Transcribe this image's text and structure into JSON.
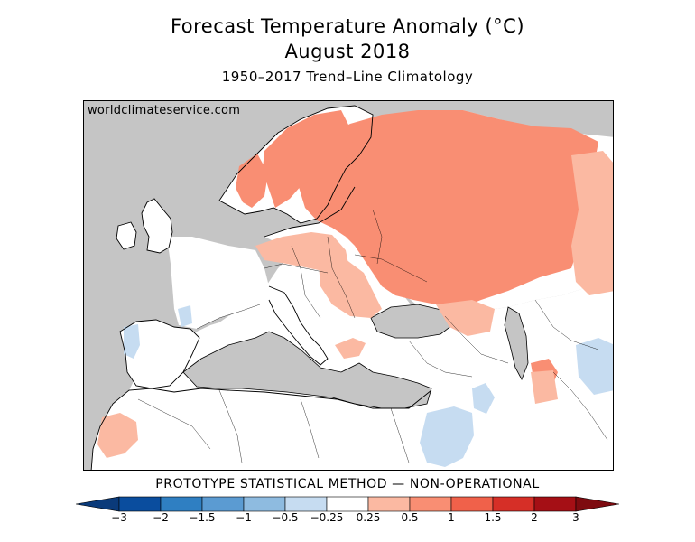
{
  "title": {
    "line1": "Forecast Temperature Anomaly (°C)",
    "line2": "August 2018",
    "line3": "1950–2017 Trend–Line Climatology"
  },
  "watermark": "worldclimateservice.com",
  "method_label": "PROTOTYPE STATISTICAL METHOD — NON-OPERATIONAL",
  "legend": {
    "ticks": [
      "−3",
      "−2",
      "−1.5",
      "−1",
      "−0.5",
      "−0.25",
      "0.25",
      "0.5",
      "1",
      "1.5",
      "2",
      "3"
    ],
    "colors": [
      "#0a4d9e",
      "#2f7fc2",
      "#5b9bd2",
      "#8ebbe0",
      "#c6dcf1",
      "#ffffff",
      "#fbb9a2",
      "#f98e73",
      "#f0614a",
      "#d62f27",
      "#a50f15"
    ],
    "low_arrow_color": "#0a3a7a",
    "high_arrow_color": "#7e0b10"
  },
  "map_colors": {
    "ocean": "#c5c5c5",
    "land_neutral": "#ffffff",
    "warm_025_05": "#fbb9a2",
    "warm_05_1": "#f98e73",
    "cool_025_05": "#c6dcf1",
    "coast": "#000000"
  }
}
